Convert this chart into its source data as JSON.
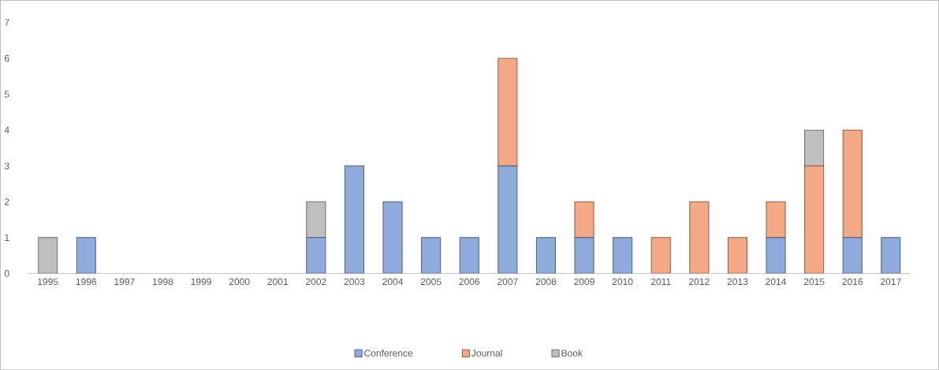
{
  "chart_data": {
    "type": "bar",
    "stacked": true,
    "categories": [
      "1995",
      "1996",
      "1997",
      "1998",
      "1999",
      "2000",
      "2001",
      "2002",
      "2003",
      "2004",
      "2005",
      "2006",
      "2007",
      "2008",
      "2009",
      "2010",
      "2011",
      "2012",
      "2013",
      "2014",
      "2015",
      "2016",
      "2017"
    ],
    "series": [
      {
        "name": "Conference",
        "color": "#8faadc",
        "values": [
          0,
          1,
          0,
          0,
          0,
          0,
          0,
          1,
          3,
          2,
          1,
          1,
          3,
          1,
          1,
          1,
          0,
          0,
          0,
          1,
          0,
          1,
          1
        ]
      },
      {
        "name": "Journal",
        "color": "#f4a886",
        "values": [
          0,
          0,
          0,
          0,
          0,
          0,
          0,
          0,
          0,
          0,
          0,
          0,
          3,
          0,
          1,
          0,
          1,
          2,
          1,
          1,
          3,
          3,
          0
        ]
      },
      {
        "name": "Book",
        "color": "#bfbfbf",
        "values": [
          1,
          0,
          0,
          0,
          0,
          0,
          0,
          1,
          0,
          0,
          0,
          0,
          0,
          0,
          0,
          0,
          0,
          0,
          0,
          0,
          1,
          0,
          0
        ]
      }
    ],
    "ylim": [
      0,
      7
    ],
    "yticks": [
      0,
      1,
      2,
      3,
      4,
      5,
      6,
      7
    ],
    "grid": false,
    "legend": "bottom"
  }
}
